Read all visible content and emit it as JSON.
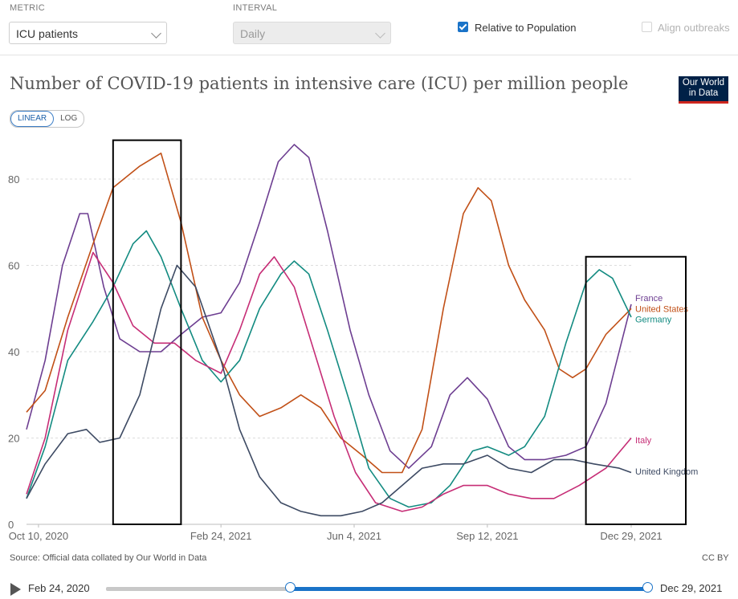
{
  "controls": {
    "metric_label": "METRIC",
    "metric_value": "ICU patients",
    "interval_label": "INTERVAL",
    "interval_value": "Daily",
    "relative_label": "Relative to Population",
    "relative_checked": true,
    "align_label": "Align outbreaks",
    "align_checked": false
  },
  "logo": {
    "line1": "Our World",
    "line2": "in Data"
  },
  "scale": {
    "linear": "LINEAR",
    "log": "LOG",
    "active": "linear"
  },
  "footer": {
    "source": "Source: Official data collated by Our World in Data",
    "license": "CC BY"
  },
  "timeline": {
    "start": "Feb 24, 2020",
    "end": "Dec 29, 2021",
    "handle_start_fraction": 0.34,
    "handle_end_fraction": 1.0
  },
  "chart_data": {
    "type": "line",
    "title": "Number of COVID-19 patients in intensive care (ICU) per million people",
    "xlabel": "",
    "ylabel": "",
    "x_range": [
      "2020-10-01",
      "2021-12-29"
    ],
    "ylim": [
      0,
      90
    ],
    "y_ticks": [
      0,
      20,
      40,
      60,
      80
    ],
    "x_ticks": [
      "Oct 10, 2020",
      "Feb 24, 2021",
      "Jun 4, 2021",
      "Sep 12, 2021",
      "Dec 29, 2021"
    ],
    "grid": true,
    "legend": "line-end labels",
    "series": [
      {
        "name": "France",
        "color": "#6d3e91",
        "points": [
          [
            "2020-10-01",
            22
          ],
          [
            "2020-10-15",
            38
          ],
          [
            "2020-10-28",
            60
          ],
          [
            "2020-11-10",
            72
          ],
          [
            "2020-11-16",
            72
          ],
          [
            "2020-11-28",
            55
          ],
          [
            "2020-12-10",
            43
          ],
          [
            "2020-12-25",
            40
          ],
          [
            "2021-01-10",
            40
          ],
          [
            "2021-01-25",
            44
          ],
          [
            "2021-02-10",
            48
          ],
          [
            "2021-02-24",
            49
          ],
          [
            "2021-03-10",
            56
          ],
          [
            "2021-03-25",
            70
          ],
          [
            "2021-04-08",
            84
          ],
          [
            "2021-04-20",
            88
          ],
          [
            "2021-05-01",
            85
          ],
          [
            "2021-05-15",
            68
          ],
          [
            "2021-06-01",
            45
          ],
          [
            "2021-06-15",
            30
          ],
          [
            "2021-07-01",
            17
          ],
          [
            "2021-07-15",
            13
          ],
          [
            "2021-08-01",
            18
          ],
          [
            "2021-08-15",
            30
          ],
          [
            "2021-08-28",
            34
          ],
          [
            "2021-09-12",
            29
          ],
          [
            "2021-09-28",
            18
          ],
          [
            "2021-10-10",
            15
          ],
          [
            "2021-10-25",
            15
          ],
          [
            "2021-11-10",
            16
          ],
          [
            "2021-11-25",
            18
          ],
          [
            "2021-12-10",
            28
          ],
          [
            "2021-12-29",
            51
          ]
        ]
      },
      {
        "name": "United States",
        "color": "#c15017",
        "points": [
          [
            "2020-10-01",
            26
          ],
          [
            "2020-10-15",
            31
          ],
          [
            "2020-11-01",
            48
          ],
          [
            "2020-11-20",
            65
          ],
          [
            "2020-12-05",
            78
          ],
          [
            "2020-12-25",
            83
          ],
          [
            "2021-01-10",
            86
          ],
          [
            "2021-01-25",
            70
          ],
          [
            "2021-02-10",
            48
          ],
          [
            "2021-02-24",
            38
          ],
          [
            "2021-03-10",
            30
          ],
          [
            "2021-03-25",
            25
          ],
          [
            "2021-04-10",
            27
          ],
          [
            "2021-04-25",
            30
          ],
          [
            "2021-05-10",
            27
          ],
          [
            "2021-05-25",
            20
          ],
          [
            "2021-06-10",
            16
          ],
          [
            "2021-06-25",
            12
          ],
          [
            "2021-07-10",
            12
          ],
          [
            "2021-07-25",
            22
          ],
          [
            "2021-08-10",
            50
          ],
          [
            "2021-08-25",
            72
          ],
          [
            "2021-09-05",
            78
          ],
          [
            "2021-09-15",
            75
          ],
          [
            "2021-09-28",
            60
          ],
          [
            "2021-10-10",
            52
          ],
          [
            "2021-10-25",
            45
          ],
          [
            "2021-11-05",
            36
          ],
          [
            "2021-11-15",
            34
          ],
          [
            "2021-11-25",
            36
          ],
          [
            "2021-12-10",
            44
          ],
          [
            "2021-12-29",
            50
          ]
        ]
      },
      {
        "name": "Germany",
        "color": "#138b81",
        "points": [
          [
            "2020-10-01",
            6
          ],
          [
            "2020-10-15",
            18
          ],
          [
            "2020-11-01",
            38
          ],
          [
            "2020-11-20",
            47
          ],
          [
            "2020-12-05",
            55
          ],
          [
            "2020-12-20",
            65
          ],
          [
            "2020-12-30",
            68
          ],
          [
            "2021-01-10",
            62
          ],
          [
            "2021-01-25",
            50
          ],
          [
            "2021-02-10",
            38
          ],
          [
            "2021-02-24",
            33
          ],
          [
            "2021-03-10",
            38
          ],
          [
            "2021-03-25",
            50
          ],
          [
            "2021-04-10",
            58
          ],
          [
            "2021-04-20",
            61
          ],
          [
            "2021-05-01",
            58
          ],
          [
            "2021-05-15",
            45
          ],
          [
            "2021-06-01",
            28
          ],
          [
            "2021-06-15",
            13
          ],
          [
            "2021-07-01",
            6
          ],
          [
            "2021-07-15",
            4
          ],
          [
            "2021-08-01",
            5
          ],
          [
            "2021-08-15",
            9
          ],
          [
            "2021-09-01",
            17
          ],
          [
            "2021-09-12",
            18
          ],
          [
            "2021-09-28",
            16
          ],
          [
            "2021-10-10",
            18
          ],
          [
            "2021-10-25",
            25
          ],
          [
            "2021-11-10",
            42
          ],
          [
            "2021-11-25",
            56
          ],
          [
            "2021-12-05",
            59
          ],
          [
            "2021-12-15",
            57
          ],
          [
            "2021-12-29",
            48
          ]
        ]
      },
      {
        "name": "Italy",
        "color": "#c62d76",
        "points": [
          [
            "2020-10-01",
            7
          ],
          [
            "2020-10-15",
            20
          ],
          [
            "2020-11-01",
            45
          ],
          [
            "2020-11-20",
            63
          ],
          [
            "2020-12-05",
            56
          ],
          [
            "2020-12-20",
            46
          ],
          [
            "2021-01-05",
            42
          ],
          [
            "2021-01-20",
            42
          ],
          [
            "2021-02-05",
            38
          ],
          [
            "2021-02-24",
            35
          ],
          [
            "2021-03-10",
            45
          ],
          [
            "2021-03-25",
            58
          ],
          [
            "2021-04-05",
            62
          ],
          [
            "2021-04-20",
            55
          ],
          [
            "2021-05-05",
            40
          ],
          [
            "2021-05-20",
            25
          ],
          [
            "2021-06-05",
            12
          ],
          [
            "2021-06-20",
            5
          ],
          [
            "2021-07-10",
            3
          ],
          [
            "2021-07-25",
            4
          ],
          [
            "2021-08-10",
            7
          ],
          [
            "2021-08-25",
            9
          ],
          [
            "2021-09-12",
            9
          ],
          [
            "2021-09-28",
            7
          ],
          [
            "2021-10-15",
            6
          ],
          [
            "2021-11-01",
            6
          ],
          [
            "2021-11-20",
            9
          ],
          [
            "2021-12-10",
            13
          ],
          [
            "2021-12-29",
            20
          ]
        ]
      },
      {
        "name": "United Kingdom",
        "color": "#3d4a63",
        "points": [
          [
            "2020-10-01",
            6
          ],
          [
            "2020-10-15",
            14
          ],
          [
            "2020-11-01",
            21
          ],
          [
            "2020-11-15",
            22
          ],
          [
            "2020-11-25",
            19
          ],
          [
            "2020-12-10",
            20
          ],
          [
            "2020-12-25",
            30
          ],
          [
            "2021-01-10",
            50
          ],
          [
            "2021-01-22",
            60
          ],
          [
            "2021-02-05",
            55
          ],
          [
            "2021-02-24",
            38
          ],
          [
            "2021-03-10",
            22
          ],
          [
            "2021-03-25",
            11
          ],
          [
            "2021-04-10",
            5
          ],
          [
            "2021-04-25",
            3
          ],
          [
            "2021-05-10",
            2
          ],
          [
            "2021-05-25",
            2
          ],
          [
            "2021-06-10",
            3
          ],
          [
            "2021-06-25",
            5
          ],
          [
            "2021-07-10",
            9
          ],
          [
            "2021-07-25",
            13
          ],
          [
            "2021-08-10",
            14
          ],
          [
            "2021-08-25",
            14
          ],
          [
            "2021-09-12",
            16
          ],
          [
            "2021-09-28",
            13
          ],
          [
            "2021-10-15",
            12
          ],
          [
            "2021-11-01",
            15
          ],
          [
            "2021-11-15",
            15
          ],
          [
            "2021-12-01",
            14
          ],
          [
            "2021-12-20",
            13
          ],
          [
            "2021-12-29",
            12
          ]
        ]
      }
    ],
    "line_end_labels": [
      {
        "series": "France",
        "text": "France",
        "y": 52.5
      },
      {
        "series": "United States",
        "text": "United States",
        "y": 50
      },
      {
        "series": "Germany",
        "text": "Germany",
        "y": 47.5
      },
      {
        "series": "Italy",
        "text": "Italy",
        "y": 19.5
      },
      {
        "series": "United Kingdom",
        "text": "United Kingdom",
        "y": 12.3
      }
    ],
    "highlight_boxes": [
      {
        "x_from": "2020-12-05",
        "x_to": "2021-01-25",
        "y_from": 0,
        "y_to": 89
      },
      {
        "x_from": "2021-11-25",
        "x_to": "2022-02-08",
        "y_from": 0,
        "y_to": 62
      }
    ]
  }
}
